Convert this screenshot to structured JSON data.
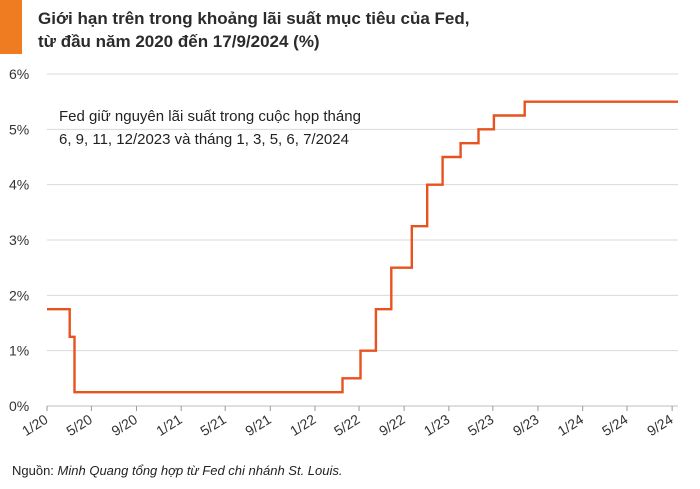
{
  "title_lines": [
    "Giới hạn trên trong khoảng lãi suất mục tiêu của Fed,",
    "từ đầu năm 2020 đến 17/9/2024 (%)"
  ],
  "source": {
    "label": "Nguồn:",
    "text": "Minh Quang tổng hợp từ Fed chi nhánh St. Louis."
  },
  "colors": {
    "accent": "#f07c21",
    "line": "#e8521f",
    "grid": "#d9d9d9"
  },
  "chart_data": {
    "type": "line",
    "title": "Giới hạn trên trong khoảng lãi suất mục tiêu của Fed, từ đầu năm 2020 đến 17/9/2024 (%)",
    "xlabel": "",
    "ylabel": "",
    "ylim": [
      0,
      6
    ],
    "xlim": [
      "2020-01-01",
      "2024-09-17"
    ],
    "yticks": [
      0,
      1,
      2,
      3,
      4,
      5,
      6
    ],
    "ytick_labels": [
      "0%",
      "1%",
      "2%",
      "3%",
      "4%",
      "5%",
      "6%"
    ],
    "xticks": [
      "2020-01-01",
      "2020-05-01",
      "2020-09-01",
      "2021-01-01",
      "2021-05-01",
      "2021-09-01",
      "2022-01-01",
      "2022-05-01",
      "2022-09-01",
      "2023-01-01",
      "2023-05-01",
      "2023-09-01",
      "2024-01-01",
      "2024-05-01",
      "2024-09-01"
    ],
    "xtick_labels": [
      "1/20",
      "5/20",
      "9/20",
      "1/21",
      "5/21",
      "9/21",
      "1/22",
      "5/22",
      "9/22",
      "1/23",
      "5/23",
      "9/23",
      "1/24",
      "5/24",
      "9/24"
    ],
    "grid": "horizontal",
    "step": true,
    "series": [
      {
        "points": [
          [
            "2020-01-01",
            1.75
          ],
          [
            "2020-03-03",
            1.25
          ],
          [
            "2020-03-16",
            0.25
          ],
          [
            "2022-03-17",
            0.5
          ],
          [
            "2022-05-05",
            1.0
          ],
          [
            "2022-06-16",
            1.75
          ],
          [
            "2022-07-28",
            2.5
          ],
          [
            "2022-09-22",
            3.25
          ],
          [
            "2022-11-03",
            4.0
          ],
          [
            "2022-12-15",
            4.5
          ],
          [
            "2023-02-02",
            4.75
          ],
          [
            "2023-03-23",
            5.0
          ],
          [
            "2023-05-04",
            5.25
          ],
          [
            "2023-07-27",
            5.5
          ],
          [
            "2024-09-17",
            5.5
          ]
        ]
      }
    ],
    "annotations": [
      {
        "lines": [
          "Fed giữ nguyên lãi suất trong cuộc họp tháng",
          "6, 9, 11, 12/2023 và tháng 1, 3, 5, 6, 7/2024"
        ]
      }
    ]
  }
}
